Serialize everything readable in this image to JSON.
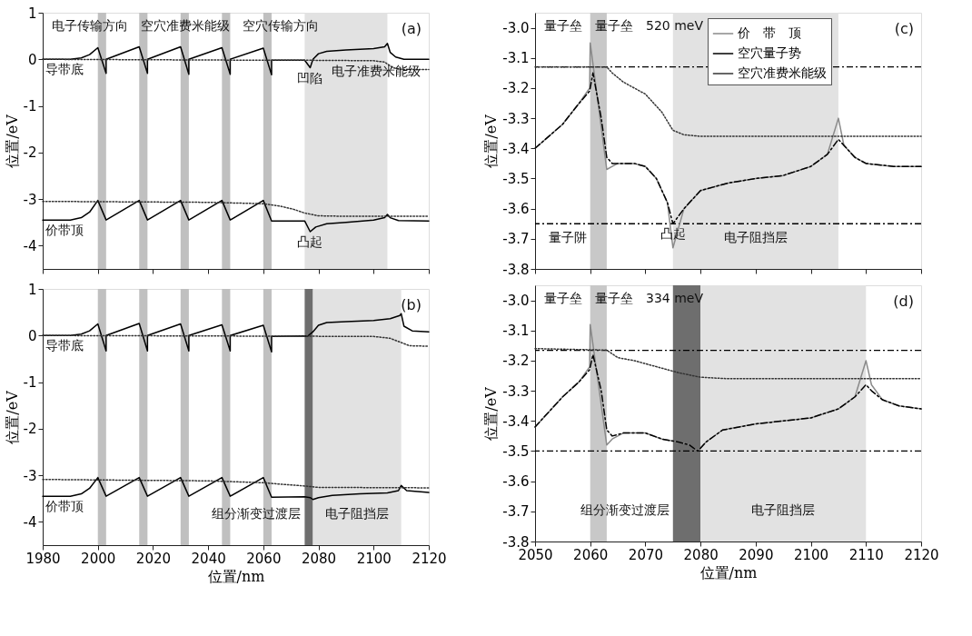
{
  "chart_data": [
    {
      "type": "line",
      "xlim": [
        1980,
        2120
      ],
      "xticks": [
        1980,
        2000,
        2020,
        2040,
        2060,
        2080,
        2100,
        2120
      ],
      "ylim": [
        -4.5,
        1
      ],
      "yticks": [
        -4,
        -3,
        -2,
        -1,
        0,
        1
      ],
      "ylabel": "位置/eV",
      "tick_labels": "y",
      "grid": false,
      "legend": false,
      "series": [
        {
          "color": "#000000",
          "line_style": "solid",
          "x": [
            1980,
            1990,
            1994,
            1997,
            2000,
            2003,
            2003,
            2015,
            2018,
            2018,
            2030,
            2033,
            2033,
            2045,
            2048,
            2048,
            2060,
            2063,
            2063,
            2075,
            2077,
            2078,
            2080,
            2083,
            2090,
            2100,
            2104,
            2105,
            2106,
            2108,
            2111,
            2120
          ],
          "values": [
            0,
            0,
            0.03,
            0.1,
            0.25,
            -0.3,
            0,
            0.27,
            -0.3,
            0,
            0.27,
            -0.32,
            0,
            0.25,
            -0.32,
            0,
            0.24,
            -0.33,
            -0.02,
            -0.02,
            -0.18,
            0,
            0.12,
            0.17,
            0.2,
            0.23,
            0.27,
            0.34,
            0.15,
            0.05,
            0,
            0
          ]
        },
        {
          "color": "#333333",
          "line_style": "dotted",
          "x": [
            1980,
            2060,
            2075,
            2100,
            2104,
            2107,
            2110,
            2120
          ],
          "values": [
            0,
            -0.02,
            -0.02,
            -0.03,
            -0.06,
            -0.18,
            -0.22,
            -0.22
          ]
        },
        {
          "color": "#000000",
          "line_style": "solid",
          "x": [
            1980,
            1990,
            1994,
            1997,
            2000,
            2003,
            2015,
            2018,
            2030,
            2033,
            2045,
            2048,
            2060,
            2063,
            2075,
            2077,
            2079,
            2083,
            2090,
            2100,
            2104,
            2105,
            2106,
            2109,
            2120
          ],
          "values": [
            -3.45,
            -3.45,
            -3.4,
            -3.28,
            -3.03,
            -3.45,
            -3.03,
            -3.45,
            -3.03,
            -3.45,
            -3.03,
            -3.45,
            -3.03,
            -3.47,
            -3.47,
            -3.7,
            -3.6,
            -3.53,
            -3.5,
            -3.45,
            -3.4,
            -3.33,
            -3.4,
            -3.46,
            -3.47
          ]
        },
        {
          "color": "#333333",
          "line_style": "dotted",
          "x": [
            1980,
            2040,
            2060,
            2066,
            2071,
            2075,
            2080,
            2090,
            2120
          ],
          "values": [
            -3.05,
            -3.07,
            -3.1,
            -3.15,
            -3.22,
            -3.3,
            -3.36,
            -3.37,
            -3.37
          ]
        }
      ],
      "bands": [
        {
          "axis": "x",
          "from": 2000,
          "to": 2003,
          "color": "#c0c0c0"
        },
        {
          "axis": "x",
          "from": 2015,
          "to": 2018,
          "color": "#c0c0c0"
        },
        {
          "axis": "x",
          "from": 2030,
          "to": 2033,
          "color": "#c0c0c0"
        },
        {
          "axis": "x",
          "from": 2045,
          "to": 2048,
          "color": "#c0c0c0"
        },
        {
          "axis": "x",
          "from": 2060,
          "to": 2063,
          "color": "#c0c0c0"
        },
        {
          "axis": "x",
          "from": 2075,
          "to": 2105,
          "color": "#e2e2e2"
        }
      ],
      "annotations": [
        {
          "text": "导带底",
          "x": 1988,
          "y": 0
        },
        {
          "text": "凹陷",
          "x": 2077,
          "y": -0.18
        },
        {
          "text": "电子准费米能级",
          "x": 2101,
          "y": -0.03
        },
        {
          "text": "价带顶",
          "x": 1988,
          "y": -3.45
        },
        {
          "text": "凸起",
          "x": 2077,
          "y": -3.7
        },
        "电子传输方向",
        "空穴准费米能级",
        "空穴传输方向",
        "(a)"
      ]
    },
    {
      "type": "line",
      "xlim": [
        1980,
        2120
      ],
      "xticks": [
        1980,
        2000,
        2020,
        2040,
        2060,
        2080,
        2100,
        2120
      ],
      "ylim": [
        -4.5,
        1
      ],
      "yticks": [
        -4,
        -3,
        -2,
        -1,
        0,
        1
      ],
      "xlabel": "位置/nm",
      "ylabel": "位置/eV",
      "grid": false,
      "legend": false,
      "series": [
        {
          "color": "#000000",
          "line_style": "solid",
          "x": [
            1980,
            1990,
            1994,
            1997,
            2000,
            2003,
            2003,
            2015,
            2018,
            2018,
            2030,
            2033,
            2033,
            2045,
            2048,
            2048,
            2060,
            2063,
            2063,
            2075,
            2076,
            2078,
            2080,
            2083,
            2090,
            2100,
            2106,
            2109.5,
            2110,
            2111,
            2114,
            2120
          ],
          "values": [
            0,
            0,
            0.03,
            0.1,
            0.25,
            -0.33,
            0,
            0.26,
            -0.33,
            0,
            0.25,
            -0.33,
            0,
            0.23,
            -0.33,
            0,
            0.22,
            -0.35,
            -0.02,
            -0.01,
            -0.02,
            0.08,
            0.22,
            0.28,
            0.3,
            0.32,
            0.36,
            0.43,
            0.47,
            0.2,
            0.1,
            0.08
          ]
        },
        {
          "color": "#333333",
          "line_style": "dotted",
          "x": [
            1980,
            2100,
            2106,
            2110,
            2113,
            2120
          ],
          "values": [
            0,
            -0.02,
            -0.06,
            -0.15,
            -0.22,
            -0.23
          ]
        },
        {
          "color": "#000000",
          "line_style": "solid",
          "x": [
            1980,
            1990,
            1994,
            1997,
            2000,
            2003,
            2015,
            2018,
            2030,
            2033,
            2045,
            2048,
            2060,
            2063,
            2075,
            2077,
            2078,
            2080,
            2085,
            2095,
            2105,
            2109,
            2110,
            2112,
            2120
          ],
          "values": [
            -3.45,
            -3.45,
            -3.4,
            -3.28,
            -3.05,
            -3.45,
            -3.05,
            -3.45,
            -3.05,
            -3.45,
            -3.05,
            -3.45,
            -3.05,
            -3.47,
            -3.46,
            -3.48,
            -3.52,
            -3.48,
            -3.43,
            -3.4,
            -3.38,
            -3.33,
            -3.22,
            -3.33,
            -3.37
          ]
        },
        {
          "color": "#333333",
          "line_style": "dotted",
          "x": [
            1980,
            2040,
            2060,
            2068,
            2075,
            2080,
            2120
          ],
          "values": [
            -3.09,
            -3.12,
            -3.16,
            -3.2,
            -3.23,
            -3.26,
            -3.27
          ]
        }
      ],
      "bands": [
        {
          "axis": "x",
          "from": 2000,
          "to": 2003,
          "color": "#c0c0c0"
        },
        {
          "axis": "x",
          "from": 2015,
          "to": 2018,
          "color": "#c0c0c0"
        },
        {
          "axis": "x",
          "from": 2030,
          "to": 2033,
          "color": "#c0c0c0"
        },
        {
          "axis": "x",
          "from": 2045,
          "to": 2048,
          "color": "#c0c0c0"
        },
        {
          "axis": "x",
          "from": 2060,
          "to": 2063,
          "color": "#c0c0c0"
        },
        {
          "axis": "x",
          "from": 2075,
          "to": 2078,
          "color": "#6e6e6e",
          "label": "组分渐变过渡层"
        },
        {
          "axis": "x",
          "from": 2078,
          "to": 2110,
          "color": "#e2e2e2",
          "label": "电子阻挡层"
        }
      ],
      "annotations": [
        {
          "text": "导带底",
          "x": 1988,
          "y": 0
        },
        {
          "text": "价带顶",
          "x": 1988,
          "y": -3.45
        },
        "(b)"
      ]
    },
    {
      "type": "line",
      "xlim": [
        2050,
        2120
      ],
      "xticks": [
        2050,
        2060,
        2070,
        2080,
        2090,
        2100,
        2110,
        2120
      ],
      "ylim": [
        -3.8,
        -2.95
      ],
      "yticks": [
        -3.8,
        -3.7,
        -3.6,
        -3.5,
        -3.4,
        -3.3,
        -3.2,
        -3.1,
        {
          "value": -3,
          "label": "-3.0"
        }
      ],
      "ylabel": "位置/eV",
      "tick_labels": "y",
      "grid": false,
      "legend": "top right",
      "series": [
        {
          "name": "价　带　顶",
          "color": "#8a8a8a",
          "line_style": "solid",
          "x": [
            2050,
            2055,
            2058,
            2059.9,
            2060,
            2063,
            2064,
            2065,
            2068,
            2070,
            2072,
            2074,
            2075,
            2077,
            2080,
            2085,
            2090,
            2095,
            2100,
            2103,
            2105,
            2106,
            2108,
            2110,
            2115,
            2120
          ],
          "values": [
            -3.4,
            -3.32,
            -3.25,
            -3.2,
            -3.05,
            -3.47,
            -3.46,
            -3.45,
            -3.45,
            -3.46,
            -3.5,
            -3.58,
            -3.73,
            -3.6,
            -3.54,
            -3.515,
            -3.5,
            -3.49,
            -3.46,
            -3.42,
            -3.3,
            -3.39,
            -3.43,
            -3.45,
            -3.46,
            -3.46
          ]
        },
        {
          "name": "空穴量子势",
          "color": "#000000",
          "line_style": "dashed",
          "x": [
            2050,
            2055,
            2058,
            2059.9,
            2060.5,
            2062,
            2063,
            2064,
            2065,
            2068,
            2070,
            2072,
            2074,
            2075,
            2077,
            2080,
            2085,
            2090,
            2095,
            2100,
            2103,
            2105,
            2106,
            2108,
            2110,
            2115,
            2120
          ],
          "values": [
            -3.4,
            -3.32,
            -3.25,
            -3.21,
            -3.15,
            -3.3,
            -3.43,
            -3.45,
            -3.45,
            -3.45,
            -3.46,
            -3.5,
            -3.58,
            -3.65,
            -3.6,
            -3.54,
            -3.515,
            -3.5,
            -3.49,
            -3.46,
            -3.42,
            -3.37,
            -3.39,
            -3.43,
            -3.45,
            -3.46,
            -3.46
          ]
        },
        {
          "name": "空穴准费米能级",
          "color": "#333333",
          "line_style": "dotted",
          "x": [
            2050,
            2063,
            2064,
            2066,
            2070,
            2073,
            2075,
            2077,
            2080,
            2120
          ],
          "values": [
            -3.13,
            -3.13,
            -3.15,
            -3.18,
            -3.22,
            -3.28,
            -3.34,
            -3.355,
            -3.36,
            -3.36
          ]
        }
      ],
      "bands": [
        {
          "axis": "x",
          "from": 2060,
          "to": 2063,
          "color": "#c8c8c8",
          "label": "量子阱"
        },
        {
          "axis": "x",
          "from": 2075,
          "to": 2105,
          "color": "#e2e2e2",
          "label": "电子阻挡层"
        }
      ],
      "ref_lines": [
        {
          "axis": "y",
          "value": -3.13,
          "line_style": "dashed",
          "color": "#000000"
        },
        {
          "axis": "y",
          "value": -3.65,
          "line_style": "dashed",
          "color": "#000000"
        }
      ],
      "annotations": [
        {
          "text": "凸起",
          "x": 2075,
          "y": -3.65
        },
        "量子垒",
        "量子垒",
        "520 meV",
        "(c)"
      ]
    },
    {
      "type": "line",
      "xlim": [
        2050,
        2120
      ],
      "xticks": [
        2050,
        2060,
        2070,
        2080,
        2090,
        2100,
        2110,
        2120
      ],
      "ylim": [
        -3.8,
        -2.95
      ],
      "yticks": [
        -3.8,
        -3.7,
        -3.6,
        -3.5,
        -3.4,
        -3.3,
        -3.2,
        -3.1,
        {
          "value": -3,
          "label": "-3.0"
        }
      ],
      "xlabel": "位置/nm",
      "ylabel": "位置/eV",
      "grid": false,
      "legend": false,
      "series": [
        {
          "color": "#8a8a8a",
          "line_style": "solid",
          "x": [
            2050,
            2055,
            2058,
            2059.9,
            2060,
            2063,
            2064,
            2066,
            2070,
            2073,
            2076,
            2078,
            2079.5,
            2081,
            2084,
            2090,
            2100,
            2105,
            2108,
            2110,
            2111,
            2113,
            2116,
            2120
          ],
          "values": [
            -3.42,
            -3.32,
            -3.27,
            -3.22,
            -3.08,
            -3.48,
            -3.46,
            -3.44,
            -3.44,
            -3.46,
            -3.47,
            -3.48,
            -3.5,
            -3.47,
            -3.43,
            -3.41,
            -3.39,
            -3.36,
            -3.32,
            -3.2,
            -3.28,
            -3.33,
            -3.35,
            -3.36
          ]
        },
        {
          "color": "#000000",
          "line_style": "dashed",
          "x": [
            2050,
            2055,
            2058,
            2059.9,
            2060.5,
            2062,
            2063,
            2064,
            2066,
            2070,
            2073,
            2076,
            2078,
            2079.5,
            2081,
            2084,
            2090,
            2100,
            2105,
            2108,
            2110,
            2111,
            2113,
            2116,
            2120
          ],
          "values": [
            -3.42,
            -3.32,
            -3.27,
            -3.23,
            -3.18,
            -3.3,
            -3.43,
            -3.45,
            -3.44,
            -3.44,
            -3.46,
            -3.47,
            -3.48,
            -3.5,
            -3.47,
            -3.43,
            -3.41,
            -3.39,
            -3.36,
            -3.32,
            -3.28,
            -3.3,
            -3.33,
            -3.35,
            -3.36
          ]
        },
        {
          "color": "#333333",
          "line_style": "dotted",
          "x": [
            2050,
            2063,
            2065,
            2068,
            2072,
            2076,
            2080,
            2085,
            2120
          ],
          "values": [
            -3.16,
            -3.165,
            -3.19,
            -3.2,
            -3.22,
            -3.24,
            -3.255,
            -3.26,
            -3.26
          ]
        }
      ],
      "bands": [
        {
          "axis": "x",
          "from": 2060,
          "to": 2063,
          "color": "#c8c8c8"
        },
        {
          "axis": "x",
          "from": 2075,
          "to": 2080,
          "color": "#6e6e6e",
          "label": "组分渐变过渡层"
        },
        {
          "axis": "x",
          "from": 2080,
          "to": 2110,
          "color": "#e2e2e2",
          "label": "电子阻挡层"
        }
      ],
      "ref_lines": [
        {
          "axis": "y",
          "value": -3.166,
          "line_style": "dashed",
          "color": "#000000"
        },
        {
          "axis": "y",
          "value": -3.5,
          "line_style": "dashed",
          "color": "#000000"
        }
      ],
      "annotations": [
        "量子垒",
        "量子垒",
        "334 meV",
        "(d)"
      ]
    }
  ]
}
